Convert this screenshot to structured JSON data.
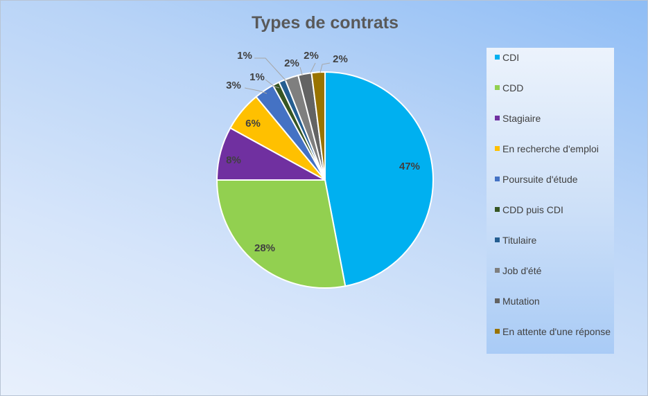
{
  "chart_data": {
    "type": "pie",
    "title": "Types de contrats",
    "categories": [
      "CDI",
      "CDD",
      "Stagiaire",
      "En recherche d'emploi",
      "Poursuite d'étude",
      "CDD puis CDI",
      "Titulaire",
      "Job d'été",
      "Mutation",
      "En attente d'une réponse"
    ],
    "values": [
      47,
      28,
      8,
      6,
      3,
      1,
      1,
      2,
      2,
      2
    ],
    "data_labels": [
      "47%",
      "28%",
      "8%",
      "6%",
      "3%",
      "1%",
      "1%",
      "2%",
      "2%",
      "2%"
    ],
    "colors": [
      "#00b0f0",
      "#92d050",
      "#7030a0",
      "#ffc000",
      "#4472c4",
      "#375623",
      "#255e91",
      "#7f7f7f",
      "#636363",
      "#997300"
    ],
    "legend_position": "right",
    "start_angle_deg": 0,
    "direction": "clockwise"
  }
}
